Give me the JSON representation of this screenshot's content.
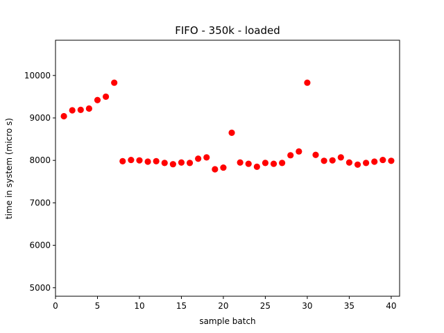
{
  "chart_data": {
    "type": "scatter",
    "title": "FIFO - 350k - loaded",
    "xlabel": "sample batch",
    "ylabel": "time in system (micro s)",
    "xlim": [
      0,
      41
    ],
    "ylim": [
      4800,
      10830
    ],
    "xticks": [
      0,
      5,
      10,
      15,
      20,
      25,
      30,
      35,
      40
    ],
    "yticks": [
      5000,
      6000,
      7000,
      8000,
      9000,
      10000
    ],
    "grid": false,
    "marker_color": "#ff0000",
    "series": [
      {
        "x": [
          1,
          2,
          3,
          4,
          5,
          6,
          7,
          8,
          9,
          10,
          11,
          12,
          13,
          14,
          15,
          16,
          17,
          18,
          19,
          20,
          21,
          22,
          23,
          24,
          25,
          26,
          27,
          28,
          29,
          30,
          31,
          32,
          33,
          34,
          35,
          36,
          37,
          38,
          39,
          40
        ],
        "y": [
          9040,
          9180,
          9190,
          9220,
          9420,
          9500,
          9830,
          7980,
          8010,
          8000,
          7970,
          7980,
          7940,
          7910,
          7950,
          7940,
          8040,
          8070,
          7790,
          7830,
          8650,
          7950,
          7920,
          7850,
          7940,
          7920,
          7940,
          8120,
          8210,
          9830,
          8130,
          7990,
          8000,
          8070,
          7950,
          7900,
          7940,
          7970,
          8010,
          7990
        ]
      }
    ]
  }
}
